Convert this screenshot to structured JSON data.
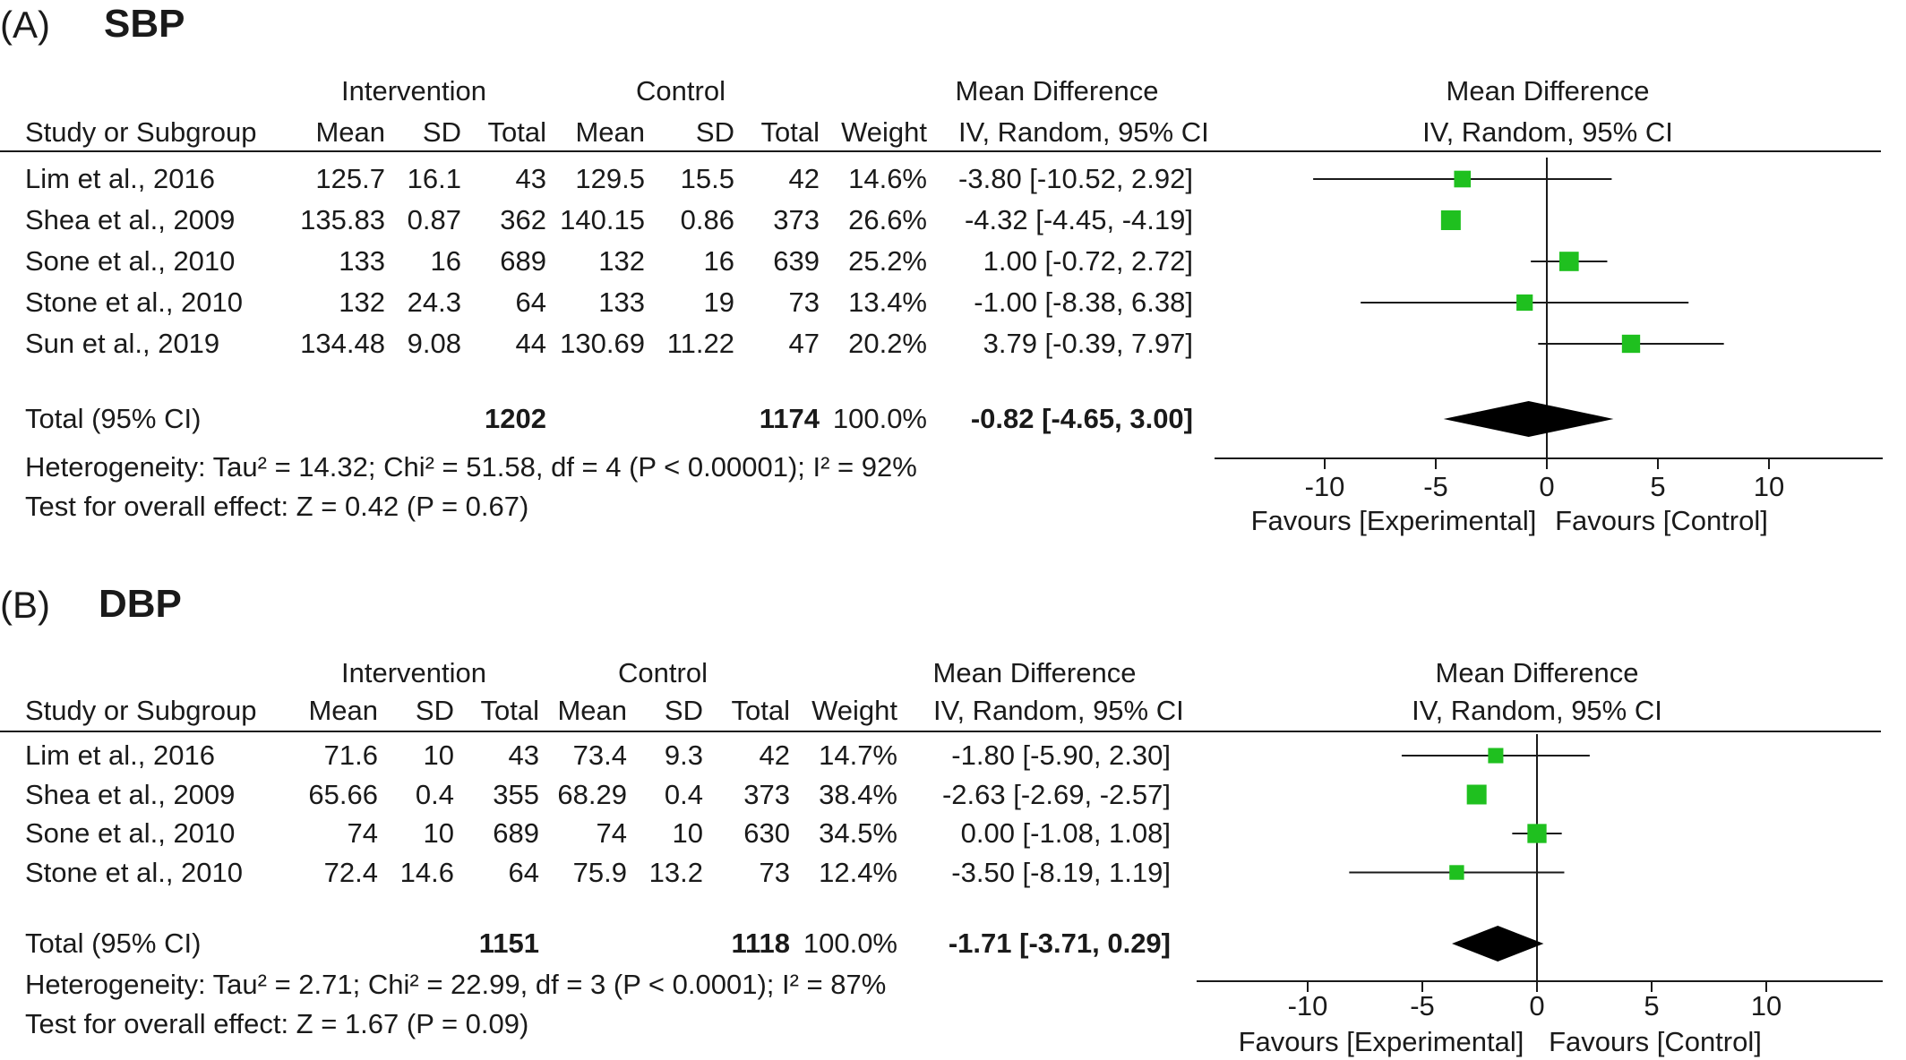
{
  "chart_data": [
    {
      "type": "forest",
      "panel_letter": "(A)",
      "title": "SBP",
      "group_headers": {
        "intervention": "Intervention",
        "control": "Control",
        "md_table": "Mean Difference",
        "md_plot": "Mean Difference"
      },
      "columns": {
        "study": "Study or Subgroup",
        "mean": "Mean",
        "sd": "SD",
        "total": "Total",
        "weight": "Weight",
        "ci": "IV, Random, 95% CI",
        "plot_ci": "IV, Random, 95% CI"
      },
      "studies": [
        {
          "study": "Lim et al., 2016",
          "i_mean": "125.7",
          "i_sd": "16.1",
          "i_total": "43",
          "c_mean": "129.5",
          "c_sd": "15.5",
          "c_total": "42",
          "weight": "14.6%",
          "ci_text": "-3.80 [-10.52, 2.92]",
          "md": -3.8,
          "lo": -10.52,
          "hi": 2.92,
          "w": 14.6
        },
        {
          "study": "Shea et al., 2009",
          "i_mean": "135.83",
          "i_sd": "0.87",
          "i_total": "362",
          "c_mean": "140.15",
          "c_sd": "0.86",
          "c_total": "373",
          "weight": "26.6%",
          "ci_text": "-4.32 [-4.45, -4.19]",
          "md": -4.32,
          "lo": -4.45,
          "hi": -4.19,
          "w": 26.6
        },
        {
          "study": "Sone et al., 2010",
          "i_mean": "133",
          "i_sd": "16",
          "i_total": "689",
          "c_mean": "132",
          "c_sd": "16",
          "c_total": "639",
          "weight": "25.2%",
          "ci_text": "1.00 [-0.72, 2.72]",
          "md": 1.0,
          "lo": -0.72,
          "hi": 2.72,
          "w": 25.2
        },
        {
          "study": "Stone et al., 2010",
          "i_mean": "132",
          "i_sd": "24.3",
          "i_total": "64",
          "c_mean": "133",
          "c_sd": "19",
          "c_total": "73",
          "weight": "13.4%",
          "ci_text": "-1.00 [-8.38, 6.38]",
          "md": -1.0,
          "lo": -8.38,
          "hi": 6.38,
          "w": 13.4
        },
        {
          "study": "Sun et al., 2019",
          "i_mean": "134.48",
          "i_sd": "9.08",
          "i_total": "44",
          "c_mean": "130.69",
          "c_sd": "11.22",
          "c_total": "47",
          "weight": "20.2%",
          "ci_text": "3.79 [-0.39, 7.97]",
          "md": 3.79,
          "lo": -0.39,
          "hi": 7.97,
          "w": 20.2
        }
      ],
      "total": {
        "label": "Total (95% CI)",
        "i_total": "1202",
        "c_total": "1174",
        "weight": "100.0%",
        "ci_text": "-0.82 [-4.65, 3.00]",
        "md": -0.82,
        "lo": -4.65,
        "hi": 3.0
      },
      "heterogeneity": "Heterogeneity: Tau² = 14.32; Chi² = 51.58, df = 4 (P < 0.00001); I² = 92%",
      "overall_effect": "Test for overall effect: Z = 0.42 (P = 0.67)",
      "xlim": [
        -15,
        15
      ],
      "ticks": [
        -10,
        -5,
        0,
        5,
        10
      ],
      "tick_labels": [
        "-10",
        "-5",
        "0",
        "5",
        "10"
      ],
      "favours_left": "Favours [Experimental]",
      "favours_right": "Favours [Control]"
    },
    {
      "type": "forest",
      "panel_letter": "(B)",
      "title": "DBP",
      "group_headers": {
        "intervention": "Intervention",
        "control": "Control",
        "md_table": "Mean Difference",
        "md_plot": "Mean Difference"
      },
      "columns": {
        "study": "Study or Subgroup",
        "mean": "Mean",
        "sd": "SD",
        "total": "Total",
        "weight": "Weight",
        "ci": "IV, Random, 95% CI",
        "plot_ci": "IV, Random, 95% CI"
      },
      "studies": [
        {
          "study": "Lim et al., 2016",
          "i_mean": "71.6",
          "i_sd": "10",
          "i_total": "43",
          "c_mean": "73.4",
          "c_sd": "9.3",
          "c_total": "42",
          "weight": "14.7%",
          "ci_text": "-1.80 [-5.90, 2.30]",
          "md": -1.8,
          "lo": -5.9,
          "hi": 2.3,
          "w": 14.7
        },
        {
          "study": "Shea et al., 2009",
          "i_mean": "65.66",
          "i_sd": "0.4",
          "i_total": "355",
          "c_mean": "68.29",
          "c_sd": "0.4",
          "c_total": "373",
          "weight": "38.4%",
          "ci_text": "-2.63 [-2.69, -2.57]",
          "md": -2.63,
          "lo": -2.69,
          "hi": -2.57,
          "w": 38.4
        },
        {
          "study": "Sone et al., 2010",
          "i_mean": "74",
          "i_sd": "10",
          "i_total": "689",
          "c_mean": "74",
          "c_sd": "10",
          "c_total": "630",
          "weight": "34.5%",
          "ci_text": "0.00 [-1.08, 1.08]",
          "md": 0.0,
          "lo": -1.08,
          "hi": 1.08,
          "w": 34.5
        },
        {
          "study": "Stone et al., 2010",
          "i_mean": "72.4",
          "i_sd": "14.6",
          "i_total": "64",
          "c_mean": "75.9",
          "c_sd": "13.2",
          "c_total": "73",
          "weight": "12.4%",
          "ci_text": "-3.50 [-8.19, 1.19]",
          "md": -3.5,
          "lo": -8.19,
          "hi": 1.19,
          "w": 12.4
        }
      ],
      "total": {
        "label": "Total (95% CI)",
        "i_total": "1151",
        "c_total": "1118",
        "weight": "100.0%",
        "ci_text": "-1.71 [-3.71, 0.29]",
        "md": -1.71,
        "lo": -3.71,
        "hi": 0.29
      },
      "heterogeneity": "Heterogeneity: Tau² = 2.71; Chi² = 22.99, df = 3 (P < 0.0001); I² = 87%",
      "overall_effect": "Test for overall effect: Z = 1.67 (P = 0.09)",
      "xlim": [
        -15,
        15
      ],
      "ticks": [
        -10,
        -5,
        0,
        5,
        10
      ],
      "tick_labels": [
        "-10",
        "-5",
        "0",
        "5",
        "10"
      ],
      "favours_left": "Favours [Experimental]",
      "favours_right": "Favours [Control]"
    }
  ],
  "colors": {
    "marker": "#1fc01f",
    "diamond": "#000000",
    "line": "#1a1a1a"
  }
}
